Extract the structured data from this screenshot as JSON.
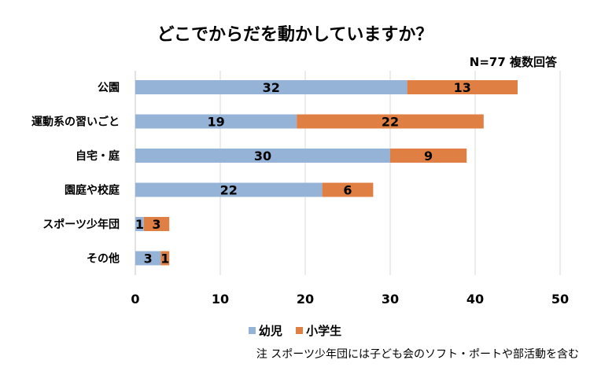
{
  "chart_data": {
    "type": "bar",
    "orientation": "horizontal",
    "stacked": true,
    "title": "どこでからだを動かしていますか？",
    "annotation": "N=77 複数回答",
    "categories": [
      "公園",
      "運動系の習いごと",
      "自宅・庭",
      "園庭や校庭",
      "スポーツ少年団",
      "その他"
    ],
    "series": [
      {
        "name": "幼児",
        "color": "#95B3D7",
        "values": [
          32,
          19,
          30,
          22,
          1,
          3
        ]
      },
      {
        "name": "小学生",
        "color": "#E07F44",
        "values": [
          13,
          22,
          9,
          6,
          3,
          1
        ]
      }
    ],
    "xlim": [
      0,
      50
    ],
    "xticks": [
      "0",
      "10",
      "20",
      "30",
      "40",
      "50"
    ],
    "grid": true,
    "legend": "bottom",
    "footnote": "注 スポーツ少年団には子ども会のソフト・ポートや部活動を含む"
  }
}
